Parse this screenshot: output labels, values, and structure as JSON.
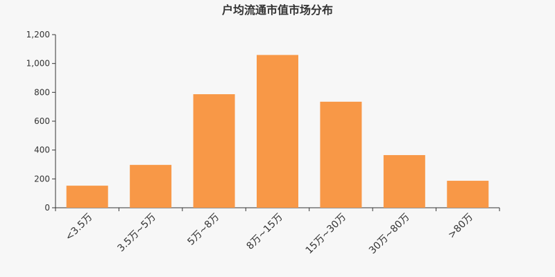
{
  "chart_data": {
    "type": "bar",
    "title": "户均流通市值市场分布",
    "categories": [
      "<3.5万",
      "3.5万~5万",
      "5万~8万",
      "8万~15万",
      "15万~30万",
      "30万~80万",
      ">80万"
    ],
    "values": [
      153,
      297,
      787,
      1059,
      735,
      365,
      187
    ],
    "ylim": [
      0,
      1200
    ],
    "yticks": [
      "0",
      "200",
      "400",
      "600",
      "800",
      "1,000",
      "1,200"
    ],
    "xlabel": "",
    "ylabel": "",
    "grid": false,
    "bar_color": "#f89847"
  }
}
